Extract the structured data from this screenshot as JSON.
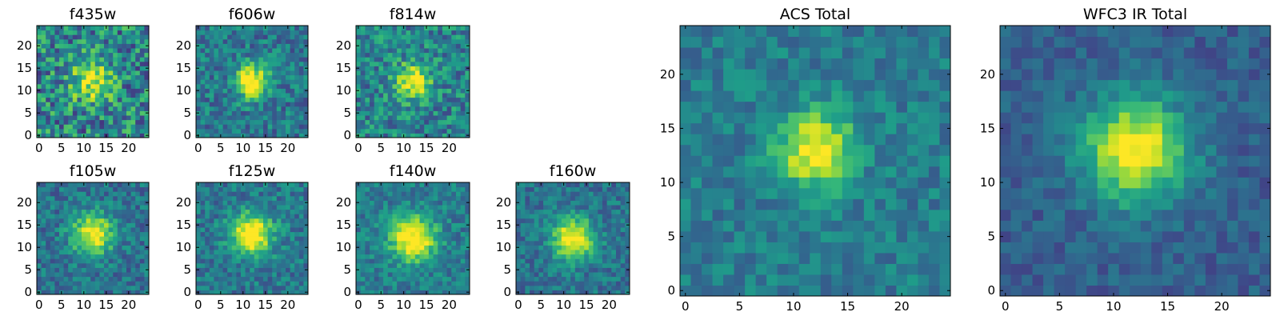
{
  "figure": {
    "colormap": "viridis"
  },
  "chart_data": [
    {
      "id": "f435w",
      "type": "heatmap",
      "title": "f435w",
      "size": 25,
      "xticks": [
        "0",
        "5",
        "10",
        "15",
        "20"
      ],
      "yticks": [
        "0",
        "5",
        "10",
        "15",
        "20"
      ],
      "xlim": [
        0,
        25
      ],
      "ylim": [
        0,
        25
      ],
      "center": [
        12,
        12
      ],
      "sigma": 3.0,
      "peak": 0.55,
      "noise": 0.6,
      "base": 0.45,
      "grid": false
    },
    {
      "id": "f606w",
      "type": "heatmap",
      "title": "f606w",
      "size": 25,
      "xticks": [
        "0",
        "5",
        "10",
        "15",
        "20"
      ],
      "yticks": [
        "0",
        "5",
        "10",
        "15",
        "20"
      ],
      "xlim": [
        0,
        25
      ],
      "ylim": [
        0,
        25
      ],
      "center": [
        12,
        12
      ],
      "sigma": 2.6,
      "peak": 0.7,
      "noise": 0.38,
      "base": 0.4,
      "grid": false
    },
    {
      "id": "f814w",
      "type": "heatmap",
      "title": "f814w",
      "size": 25,
      "xticks": [
        "0",
        "5",
        "10",
        "15",
        "20"
      ],
      "yticks": [
        "0",
        "5",
        "10",
        "15",
        "20"
      ],
      "xlim": [
        0,
        25
      ],
      "ylim": [
        0,
        25
      ],
      "center": [
        12,
        12
      ],
      "sigma": 2.6,
      "peak": 0.6,
      "noise": 0.45,
      "base": 0.45,
      "grid": false
    },
    {
      "id": "f105w",
      "type": "heatmap",
      "title": "f105w",
      "size": 25,
      "xticks": [
        "0",
        "5",
        "10",
        "15",
        "20"
      ],
      "yticks": [
        "0",
        "5",
        "10",
        "15",
        "20"
      ],
      "xlim": [
        0,
        25
      ],
      "ylim": [
        0,
        25
      ],
      "center": [
        12,
        13
      ],
      "sigma": 3.2,
      "peak": 0.65,
      "noise": 0.32,
      "base": 0.38,
      "grid": false
    },
    {
      "id": "f125w",
      "type": "heatmap",
      "title": "f125w",
      "size": 25,
      "xticks": [
        "0",
        "5",
        "10",
        "15",
        "20"
      ],
      "yticks": [
        "0",
        "5",
        "10",
        "15",
        "20"
      ],
      "xlim": [
        0,
        25
      ],
      "ylim": [
        0,
        25
      ],
      "center": [
        12,
        13
      ],
      "sigma": 3.2,
      "peak": 0.7,
      "noise": 0.32,
      "base": 0.4,
      "grid": false
    },
    {
      "id": "f140w",
      "type": "heatmap",
      "title": "f140w",
      "size": 25,
      "xticks": [
        "0",
        "5",
        "10",
        "15",
        "20"
      ],
      "yticks": [
        "0",
        "5",
        "10",
        "15",
        "20"
      ],
      "xlim": [
        0,
        25
      ],
      "ylim": [
        0,
        25
      ],
      "center": [
        12,
        12
      ],
      "sigma": 3.4,
      "peak": 0.7,
      "noise": 0.3,
      "base": 0.42,
      "grid": false
    },
    {
      "id": "f160w",
      "type": "heatmap",
      "title": "f160w",
      "size": 25,
      "xticks": [
        "0",
        "5",
        "10",
        "15",
        "20"
      ],
      "yticks": [
        "0",
        "5",
        "10",
        "15",
        "20"
      ],
      "xlim": [
        0,
        25
      ],
      "ylim": [
        0,
        25
      ],
      "center": [
        12,
        12
      ],
      "sigma": 3.2,
      "peak": 0.7,
      "noise": 0.3,
      "base": 0.38,
      "grid": false
    },
    {
      "id": "acs-total",
      "type": "heatmap",
      "title": "ACS Total",
      "size": 25,
      "xticks": [
        "0",
        "5",
        "10",
        "15",
        "20"
      ],
      "yticks": [
        "0",
        "5",
        "10",
        "15",
        "20"
      ],
      "xlim": [
        0,
        25
      ],
      "ylim": [
        0,
        25
      ],
      "center": [
        12,
        13
      ],
      "sigma": 2.4,
      "peak": 0.62,
      "noise": 0.26,
      "base": 0.42,
      "grid": false
    },
    {
      "id": "wfc3-ir-total",
      "type": "heatmap",
      "title": "WFC3 IR Total",
      "size": 25,
      "xticks": [
        "0",
        "5",
        "10",
        "15",
        "20"
      ],
      "yticks": [
        "0",
        "5",
        "10",
        "15",
        "20"
      ],
      "xlim": [
        0,
        25
      ],
      "ylim": [
        0,
        25
      ],
      "center": [
        12,
        13
      ],
      "sigma": 3.4,
      "peak": 0.72,
      "noise": 0.2,
      "base": 0.3,
      "grid": false
    }
  ]
}
